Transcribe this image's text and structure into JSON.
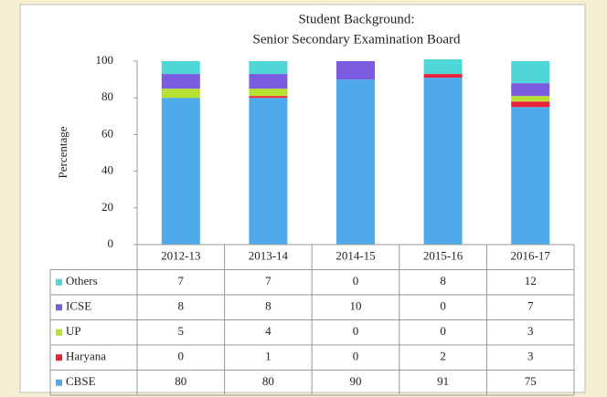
{
  "chart_data": {
    "type": "stacked_bar",
    "title": "Student Background:",
    "subtitle": "Senior Secondary Examination Board",
    "y_label": "Percentage",
    "categories": [
      "2012-13",
      "2013-14",
      "2014-15",
      "2015-16",
      "2016-17"
    ],
    "series": [
      {
        "name": "CBSE",
        "color": "#4eaaea",
        "values": [
          80,
          80,
          90,
          91,
          75
        ]
      },
      {
        "name": "Haryana",
        "color": "#e8203a",
        "values": [
          0,
          1,
          0,
          2,
          3
        ]
      },
      {
        "name": "UP",
        "color": "#b8e030",
        "values": [
          5,
          4,
          0,
          0,
          3
        ]
      },
      {
        "name": "ICSE",
        "color": "#7b5ce0",
        "values": [
          8,
          8,
          10,
          0,
          7
        ]
      },
      {
        "name": "Others",
        "color": "#4fd6d6",
        "values": [
          7,
          7,
          0,
          8,
          12
        ]
      }
    ],
    "ylim": [
      0,
      100
    ],
    "yticks": [
      0,
      20,
      40,
      60,
      80,
      100
    ],
    "grid": false
  }
}
